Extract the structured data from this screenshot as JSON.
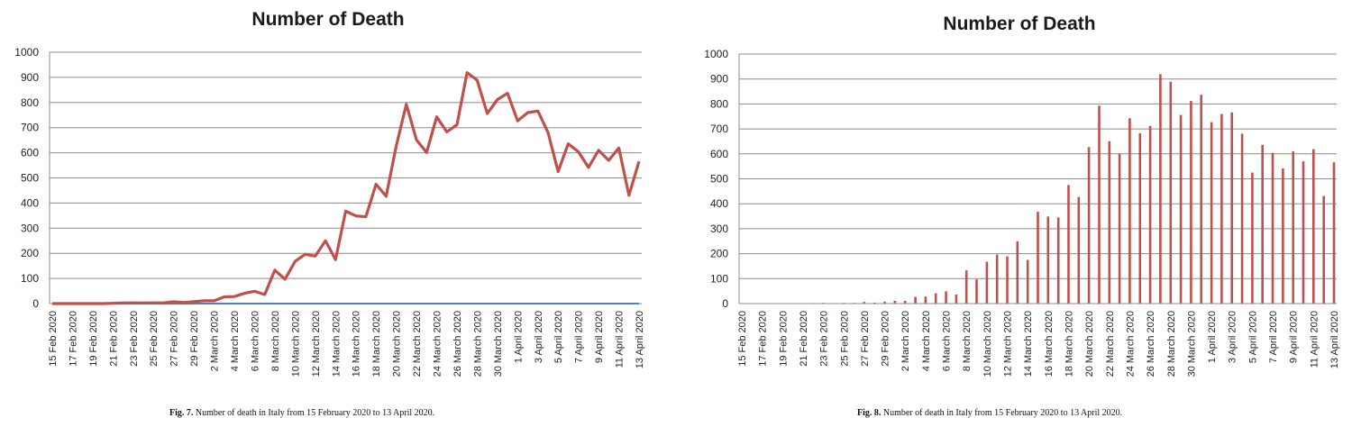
{
  "chart_data": [
    {
      "type": "line",
      "title": "Number of Death",
      "ylim": [
        0,
        1000
      ],
      "yticks": [
        0,
        100,
        200,
        300,
        400,
        500,
        600,
        700,
        800,
        900,
        1000
      ],
      "grid": true,
      "x_tick_labels": [
        "15 Feb 2020",
        "17 Feb 2020",
        "19 Feb 2020",
        "21 Feb 2020",
        "23 Feb 2020",
        "25 Feb 2020",
        "27 Feb 2020",
        "29 Feb 2020",
        "2 March 2020",
        "4 March 2020",
        "6 March 2020",
        "8 March 2020",
        "10 March 2020",
        "12 March 2020",
        "14 March 2020",
        "16 March 2020",
        "18 March 2020",
        "20 March 2020",
        "22 March 2020",
        "24 March 2020",
        "26 March 2020",
        "28 March 2020",
        "30 March 2020",
        "1 April 2020",
        "3 April 2020",
        "5 April 2020",
        "7 April 2020",
        "9 April 2020",
        "11 April 2020",
        "13 April 2020"
      ],
      "series": [
        {
          "color": "#c0504d",
          "values": [
            0,
            0,
            0,
            0,
            0,
            0,
            1,
            2,
            3,
            2,
            3,
            3,
            7,
            4,
            8,
            11,
            11,
            27,
            28,
            41,
            49,
            36,
            133,
            97,
            168,
            196,
            189,
            250,
            175,
            368,
            349,
            345,
            475,
            427,
            627,
            793,
            651,
            601,
            743,
            683,
            712,
            919,
            889,
            756,
            812,
            837,
            727,
            760,
            766,
            681,
            525,
            636,
            604,
            542,
            610,
            570,
            619,
            431,
            566
          ]
        },
        {
          "color": "#4f81bd",
          "values": [
            0,
            0
          ]
        }
      ]
    },
    {
      "type": "bar",
      "title": "Number of Death",
      "ylim": [
        0,
        1000
      ],
      "yticks": [
        0,
        100,
        200,
        300,
        400,
        500,
        600,
        700,
        800,
        900,
        1000
      ],
      "grid": true,
      "x_tick_labels": [
        "15 Feb 2020",
        "17 Feb 2020",
        "19 Feb 2020",
        "21 Feb 2020",
        "23 Feb 2020",
        "25 Feb 2020",
        "27 Feb 2020",
        "29 Feb 2020",
        "2 March 2020",
        "4 March 2020",
        "6 March 2020",
        "8 March 2020",
        "10 March 2020",
        "12 March 2020",
        "14 March 2020",
        "16 March 2020",
        "18 March 2020",
        "20 March 2020",
        "22 March 2020",
        "24 March 2020",
        "26 March 2020",
        "28 March 2020",
        "30 March 2020",
        "1 April 2020",
        "3 April 2020",
        "5 April 2020",
        "7 April 2020",
        "9 April 2020",
        "11 April 2020",
        "13 April 2020"
      ],
      "bar_color": "#c0504d",
      "values": [
        0,
        0,
        0,
        0,
        0,
        0,
        1,
        2,
        3,
        2,
        3,
        3,
        7,
        4,
        8,
        11,
        11,
        27,
        28,
        41,
        49,
        36,
        133,
        97,
        168,
        196,
        189,
        250,
        175,
        368,
        349,
        345,
        475,
        427,
        627,
        793,
        651,
        601,
        743,
        683,
        712,
        919,
        889,
        756,
        812,
        837,
        727,
        760,
        766,
        681,
        525,
        636,
        604,
        542,
        610,
        570,
        619,
        431,
        566
      ]
    }
  ],
  "captions": [
    {
      "label": "Fig. 7.",
      "text": "Number of death in Italy from 15 February 2020 to 13 April 2020."
    },
    {
      "label": "Fig. 8.",
      "text": "Number of death in Italy from 15 February 2020 to 13 April 2020."
    }
  ]
}
